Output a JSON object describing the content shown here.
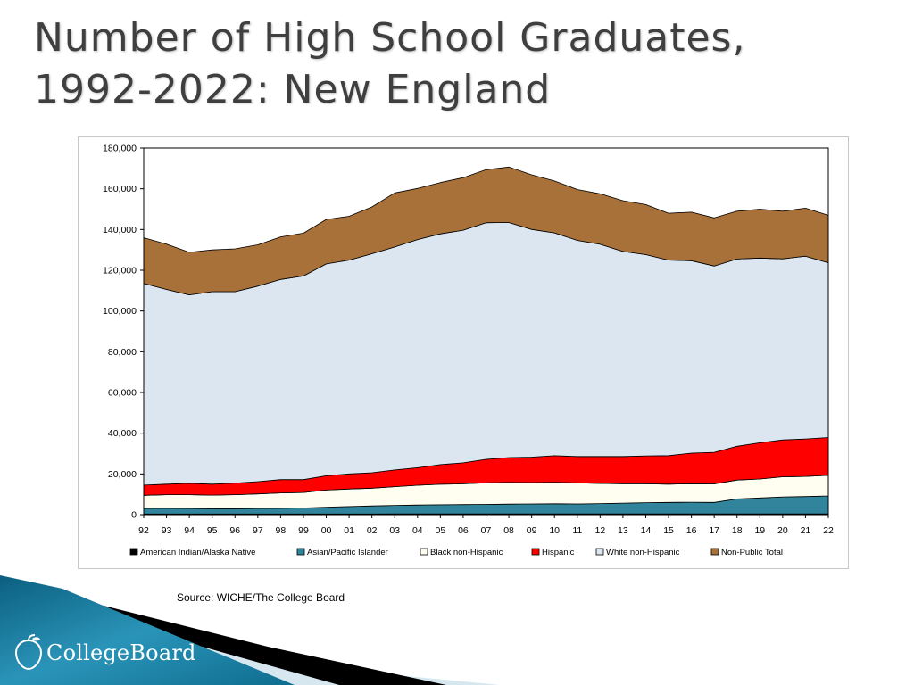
{
  "slide": {
    "title_line1": "Number of High School Graduates,",
    "title_line2": "1992-2022:  New England",
    "source": "Source: WICHE/The College Board",
    "logo_text": "CollegeBoard"
  },
  "chart_data": {
    "type": "area",
    "stacked": true,
    "title": "",
    "xlabel": "",
    "ylabel": "",
    "ylim": [
      0,
      180000
    ],
    "yticks": [
      0,
      20000,
      40000,
      60000,
      80000,
      100000,
      120000,
      140000,
      160000,
      180000
    ],
    "ytick_labels": [
      "0",
      "20,000",
      "40,000",
      "60,000",
      "80,000",
      "100,000",
      "120,000",
      "140,000",
      "160,000",
      "180,000"
    ],
    "categories": [
      "92",
      "93",
      "94",
      "95",
      "96",
      "97",
      "98",
      "99",
      "00",
      "01",
      "02",
      "03",
      "04",
      "05",
      "06",
      "07",
      "08",
      "09",
      "10",
      "11",
      "12",
      "13",
      "14",
      "15",
      "16",
      "17",
      "18",
      "19",
      "20",
      "21",
      "22"
    ],
    "grid": false,
    "legend_position": "bottom",
    "series": [
      {
        "name": "American Indian/Alaska Native",
        "color": "#000000",
        "values": [
          300,
          300,
          300,
          300,
          300,
          300,
          300,
          300,
          300,
          300,
          300,
          350,
          350,
          350,
          350,
          350,
          350,
          350,
          350,
          350,
          350,
          350,
          350,
          400,
          400,
          400,
          400,
          400,
          400,
          400,
          400
        ]
      },
      {
        "name": "Asian/Pacific Islander",
        "color": "#31849b",
        "values": [
          2700,
          2800,
          2700,
          2600,
          2600,
          2700,
          2800,
          3000,
          3400,
          3700,
          4000,
          4200,
          4400,
          4500,
          4600,
          4700,
          4800,
          4900,
          5000,
          4900,
          5100,
          5300,
          5500,
          5600,
          5700,
          5600,
          7300,
          7800,
          8300,
          8500,
          8800
        ]
      },
      {
        "name": "Black non-Hispanic",
        "color": "#fffef0",
        "values": [
          6500,
          6700,
          6800,
          6700,
          6900,
          7200,
          7600,
          7600,
          8400,
          8600,
          8700,
          9200,
          9700,
          10100,
          10200,
          10600,
          10700,
          10500,
          10600,
          10400,
          9900,
          9500,
          9300,
          9000,
          9100,
          9100,
          9300,
          9300,
          9900,
          9900,
          10100
        ]
      },
      {
        "name": "Hispanic",
        "color": "#ff0000",
        "values": [
          5000,
          5200,
          5600,
          5400,
          5700,
          6000,
          6500,
          6300,
          7000,
          7400,
          7600,
          8200,
          8600,
          9600,
          10300,
          11500,
          12200,
          12500,
          13000,
          12900,
          13200,
          13400,
          13700,
          14000,
          15000,
          15500,
          16600,
          17800,
          18100,
          18400,
          18600
        ]
      },
      {
        "name": "White non-Hispanic",
        "color": "#dce6f1",
        "values": [
          99000,
          95600,
          92500,
          94500,
          94000,
          96000,
          98300,
          100000,
          104000,
          105000,
          107500,
          109500,
          112000,
          113300,
          114200,
          116200,
          115400,
          111800,
          109400,
          106100,
          104200,
          100700,
          98800,
          96000,
          94500,
          91500,
          91900,
          90700,
          88900,
          89700,
          85800
        ]
      },
      {
        "name": "Non-Public Total",
        "color": "#a9713a",
        "values": [
          22500,
          22200,
          20900,
          20500,
          21000,
          20300,
          20900,
          21000,
          21800,
          21500,
          23000,
          26500,
          25100,
          25200,
          25800,
          26000,
          27200,
          26800,
          25500,
          25000,
          24800,
          24900,
          24600,
          23000,
          23800,
          23600,
          23500,
          24000,
          23400,
          23600,
          23300
        ]
      }
    ]
  }
}
